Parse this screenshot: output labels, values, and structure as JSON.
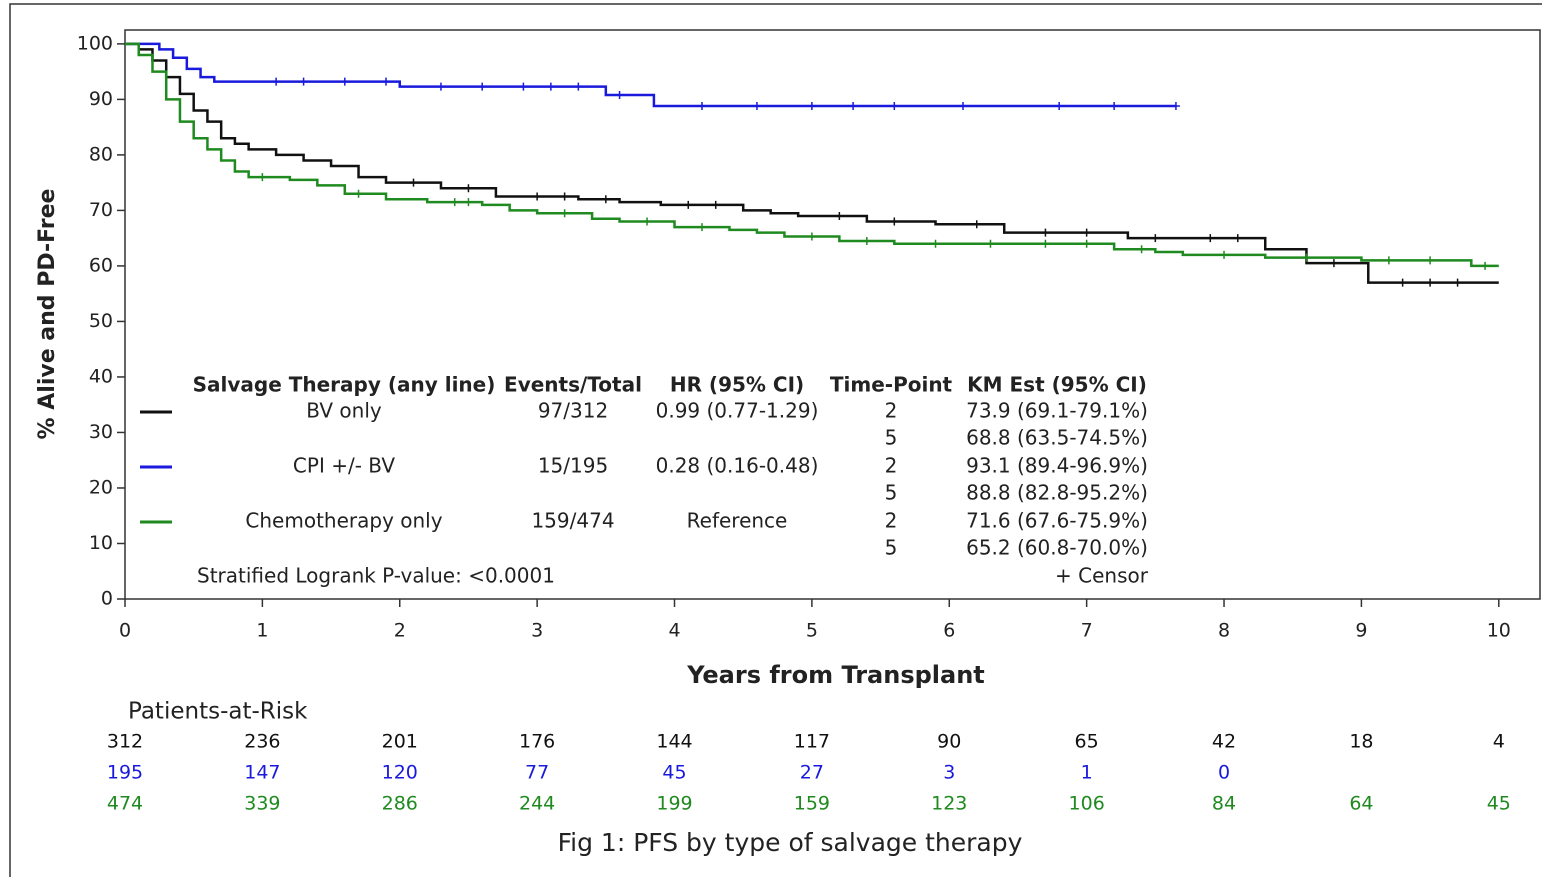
{
  "chart_data": {
    "type": "kaplan-meier",
    "caption": "Fig 1: PFS by type of salvage therapy",
    "x_label": "Years from Transplant",
    "y_label": "% Alive and PD-Free",
    "xlim": [
      0,
      10.3
    ],
    "xticks": [
      0,
      1,
      2,
      3,
      4,
      5,
      6,
      7,
      8,
      9,
      10
    ],
    "ylim": [
      0,
      102.5
    ],
    "yticks": [
      0,
      10,
      20,
      30,
      40,
      50,
      60,
      70,
      80,
      90,
      100
    ],
    "legend_headers": [
      "Salvage Therapy (any line)",
      "Events/Total",
      "HR (95% CI)",
      "Time-Point",
      "KM Est (95% CI)"
    ],
    "p_value_text": "Stratified Logrank P-value: <0.0001",
    "censor_text": "+ Censor",
    "risk_title": "Patients-at-Risk",
    "series": [
      {
        "name": "BV only",
        "color": "#111111",
        "x": [
          0,
          0.1,
          0.2,
          0.3,
          0.4,
          0.5,
          0.6,
          0.7,
          0.8,
          0.9,
          1.1,
          1.3,
          1.5,
          1.7,
          1.9,
          2.3,
          2.7,
          3.3,
          3.6,
          3.9,
          4.5,
          4.7,
          4.9,
          5.4,
          5.9,
          6.4,
          7.3,
          8.3,
          8.6,
          9.05,
          10.0
        ],
        "values": [
          100,
          99,
          97,
          94,
          91,
          88,
          86,
          83,
          82,
          81,
          80,
          79,
          78,
          76,
          75,
          74,
          72.5,
          72,
          71.5,
          71,
          70,
          69.5,
          69,
          68,
          67.5,
          66,
          65,
          63,
          60.5,
          57,
          57
        ],
        "censor_x": [
          2.1,
          2.5,
          3.0,
          3.2,
          3.5,
          4.1,
          4.3,
          5.2,
          5.6,
          6.2,
          6.7,
          7.0,
          7.5,
          7.9,
          8.1,
          8.8,
          9.3,
          9.5,
          9.7
        ],
        "events_total": "97/312",
        "hr": "0.99 (0.77-1.29)",
        "km": [
          {
            "time": 2,
            "est": "73.9 (69.1-79.1%)"
          },
          {
            "time": 5,
            "est": "68.8 (63.5-74.5%)"
          }
        ],
        "at_risk": [
          312,
          236,
          201,
          176,
          144,
          117,
          90,
          65,
          42,
          18,
          4
        ]
      },
      {
        "name": "CPI +/- BV",
        "color": "#1a1adc",
        "x": [
          0,
          0.25,
          0.35,
          0.45,
          0.55,
          0.65,
          2.0,
          3.5,
          3.85,
          7.65
        ],
        "values": [
          100,
          99,
          97.5,
          95.5,
          94,
          93.2,
          92.3,
          90.8,
          88.8,
          88.8
        ],
        "censor_x": [
          1.1,
          1.3,
          1.6,
          1.9,
          2.3,
          2.6,
          2.9,
          3.1,
          3.3,
          3.6,
          4.2,
          4.6,
          5.0,
          5.3,
          5.6,
          6.1,
          6.8,
          7.2,
          7.65
        ],
        "events_total": "15/195",
        "hr": "0.28 (0.16-0.48)",
        "km": [
          {
            "time": 2,
            "est": "93.1 (89.4-96.9%)"
          },
          {
            "time": 5,
            "est": "88.8 (82.8-95.2%)"
          }
        ],
        "at_risk": [
          195,
          147,
          120,
          77,
          45,
          27,
          3,
          1,
          0,
          null,
          null
        ]
      },
      {
        "name": "Chemotherapy only",
        "color": "#1f8a1f",
        "x": [
          0,
          0.1,
          0.2,
          0.3,
          0.4,
          0.5,
          0.6,
          0.7,
          0.8,
          0.9,
          1.2,
          1.4,
          1.6,
          1.9,
          2.2,
          2.6,
          2.8,
          3.0,
          3.4,
          3.6,
          4.0,
          4.4,
          4.6,
          4.8,
          5.2,
          5.6,
          7.2,
          7.5,
          7.7,
          8.3,
          9.0,
          9.8,
          10.0
        ],
        "values": [
          100,
          98,
          95,
          90,
          86,
          83,
          81,
          79,
          77,
          76,
          75.5,
          74.5,
          73,
          72,
          71.5,
          71,
          70,
          69.5,
          68.5,
          68,
          67,
          66.5,
          66,
          65.3,
          64.5,
          64,
          63,
          62.5,
          62,
          61.5,
          61,
          60,
          60
        ],
        "censor_x": [
          1.0,
          1.7,
          2.4,
          2.5,
          3.2,
          3.8,
          4.2,
          5.0,
          5.4,
          5.9,
          6.3,
          6.7,
          7.0,
          7.4,
          8.0,
          8.6,
          9.2,
          9.5,
          9.9
        ],
        "events_total": "159/474",
        "hr": "Reference",
        "km": [
          {
            "time": 2,
            "est": "71.6 (67.6-75.9%)"
          },
          {
            "time": 5,
            "est": "65.2 (60.8-70.0%)"
          }
        ],
        "at_risk": [
          474,
          339,
          286,
          244,
          199,
          159,
          123,
          106,
          84,
          64,
          45
        ]
      }
    ]
  }
}
